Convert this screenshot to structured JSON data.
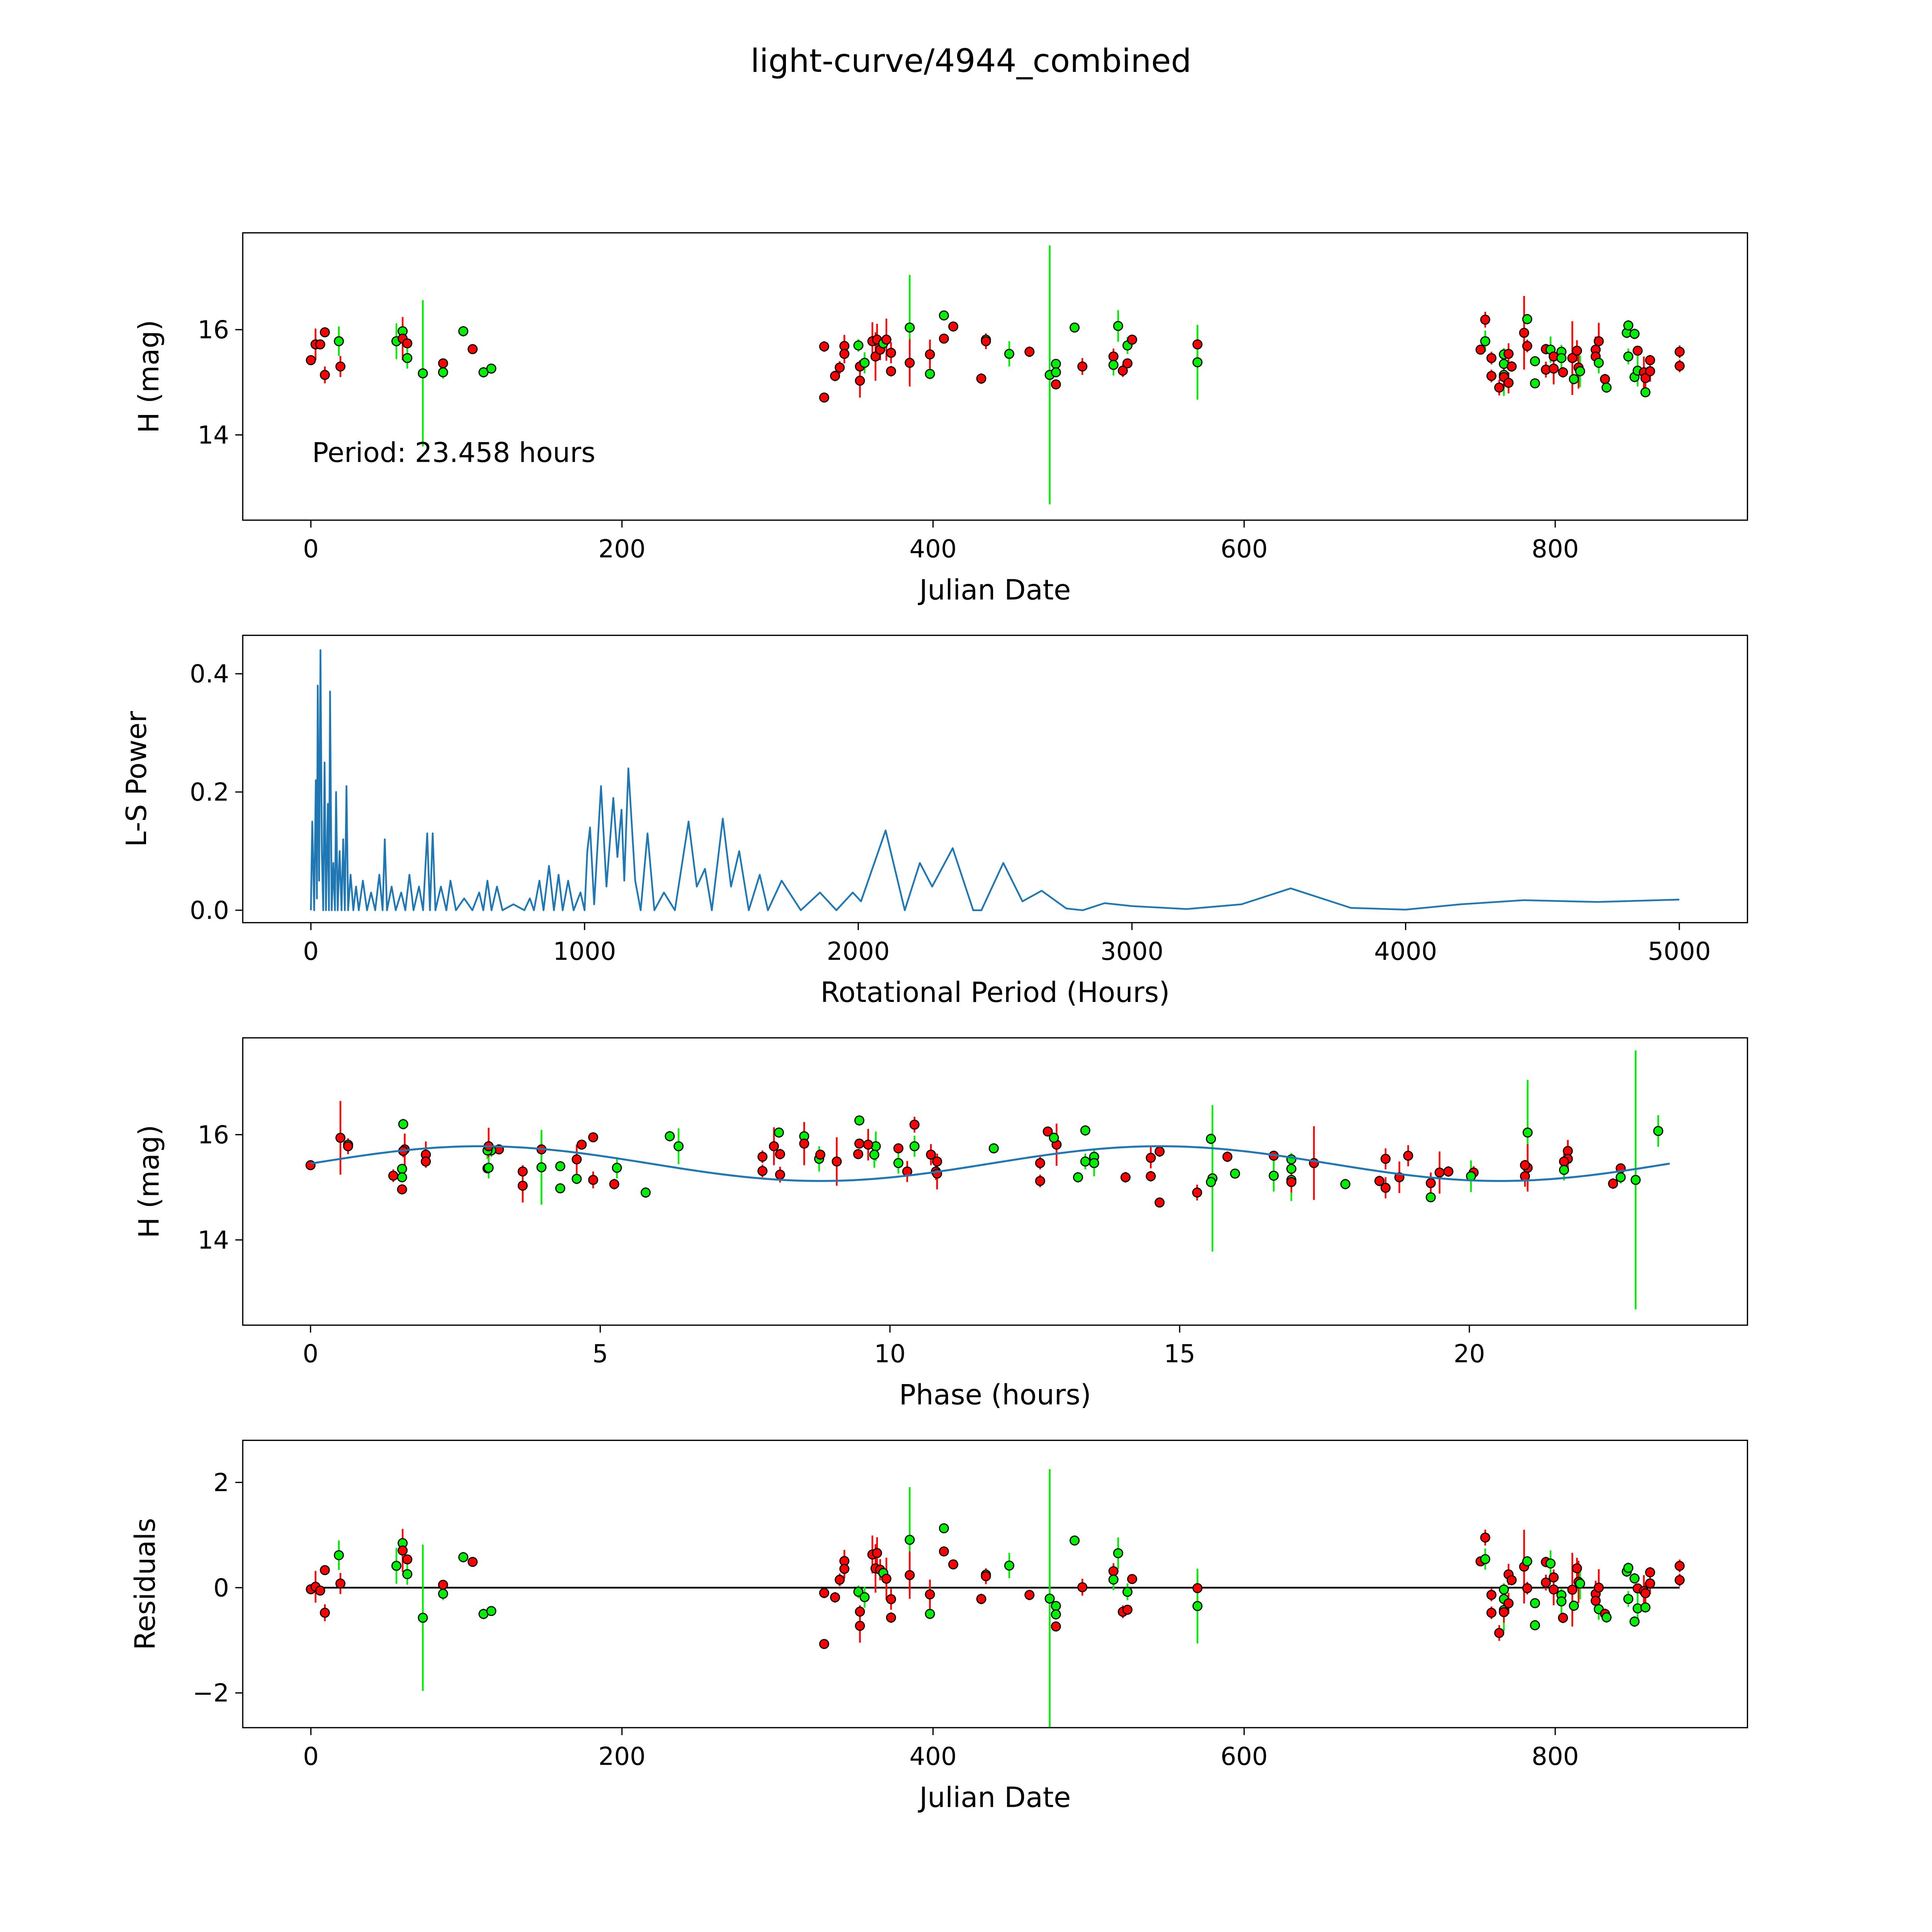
{
  "title": "light-curve/4944_combined",
  "colors": {
    "r": "#ff0000",
    "g": "#00ee00",
    "line": "#1f77b4",
    "edge": "#000000"
  },
  "chart_data": [
    {
      "id": "lightcurve",
      "type": "scatter",
      "xlabel": "Julian Date",
      "ylabel": "H (mag)",
      "xlim": [
        -43.8,
        923.6
      ],
      "ylim": [
        12.38,
        17.84
      ],
      "xticks": [
        0,
        200,
        400,
        600,
        800
      ],
      "xtick_labels": [
        "0",
        "200",
        "400",
        "600",
        "800"
      ],
      "yticks": [
        14,
        16
      ],
      "ytick_labels": [
        "14",
        "16"
      ],
      "annotation": "Period: 23.458 hours",
      "observations_format": [
        "julian_date",
        "H_mag",
        "error",
        "filter"
      ],
      "observations": [
        [
          0,
          15.42,
          0.06,
          "r"
        ],
        [
          3,
          15.72,
          0.3,
          "r"
        ],
        [
          6,
          15.72,
          0.08,
          "r"
        ],
        [
          9,
          15.95,
          0.06,
          "r"
        ],
        [
          9,
          15.14,
          0.16,
          "r"
        ],
        [
          18,
          15.78,
          0.28,
          "g"
        ],
        [
          19,
          15.3,
          0.2,
          "r"
        ],
        [
          55,
          15.78,
          0.34,
          "g"
        ],
        [
          59,
          15.97,
          0.08,
          "g"
        ],
        [
          59,
          15.83,
          0.41,
          "r"
        ],
        [
          62,
          15.74,
          0.06,
          "r"
        ],
        [
          62,
          15.46,
          0.2,
          "g"
        ],
        [
          72,
          15.17,
          1.39,
          "g"
        ],
        [
          85,
          15.36,
          0.06,
          "r"
        ],
        [
          85,
          15.19,
          0.12,
          "g"
        ],
        [
          98,
          15.97,
          0.1,
          "g"
        ],
        [
          104,
          15.63,
          0.06,
          "r"
        ],
        [
          111,
          15.19,
          0.1,
          "g"
        ],
        [
          116,
          15.26,
          0.06,
          "g"
        ],
        [
          330,
          15.68,
          0.1,
          "r"
        ],
        [
          330,
          14.71,
          0.06,
          "r"
        ],
        [
          337,
          15.12,
          0.1,
          "r"
        ],
        [
          340,
          15.28,
          0.12,
          "r"
        ],
        [
          343,
          15.69,
          0.21,
          "r"
        ],
        [
          343,
          15.54,
          0.18,
          "r"
        ],
        [
          352,
          15.7,
          0.12,
          "g"
        ],
        [
          353,
          15.3,
          0.12,
          "r"
        ],
        [
          353,
          15.03,
          0.32,
          "r"
        ],
        [
          356,
          15.37,
          0.2,
          "g"
        ],
        [
          361,
          15.78,
          0.36,
          "r"
        ],
        [
          363,
          15.49,
          0.46,
          "r"
        ],
        [
          364,
          15.81,
          0.3,
          "r"
        ],
        [
          366,
          15.62,
          0.2,
          "r"
        ],
        [
          368,
          15.74,
          0.08,
          "g"
        ],
        [
          370,
          15.81,
          0.4,
          "r"
        ],
        [
          373,
          15.56,
          0.2,
          "r"
        ],
        [
          373,
          15.21,
          0.1,
          "r"
        ],
        [
          385,
          16.04,
          1.0,
          "g"
        ],
        [
          385,
          15.37,
          0.45,
          "r"
        ],
        [
          398,
          15.53,
          0.28,
          "r"
        ],
        [
          398,
          15.16,
          0.1,
          "g"
        ],
        [
          407,
          16.27,
          0.08,
          "g"
        ],
        [
          407,
          15.83,
          0.08,
          "r"
        ],
        [
          413,
          16.06,
          0.08,
          "r"
        ],
        [
          431,
          15.07,
          0.1,
          "r"
        ],
        [
          434,
          15.81,
          0.1,
          "g"
        ],
        [
          434,
          15.78,
          0.15,
          "r"
        ],
        [
          449,
          15.54,
          0.24,
          "g"
        ],
        [
          462,
          15.58,
          0.1,
          "r"
        ],
        [
          475,
          15.14,
          2.46,
          "g"
        ],
        [
          479,
          15.35,
          0.08,
          "g"
        ],
        [
          479,
          15.19,
          0.08,
          "g"
        ],
        [
          479,
          14.96,
          0.08,
          "r"
        ],
        [
          491,
          16.04,
          0.08,
          "g"
        ],
        [
          496,
          15.3,
          0.16,
          "r"
        ],
        [
          516,
          15.49,
          0.15,
          "r"
        ],
        [
          516,
          15.33,
          0.2,
          "g"
        ],
        [
          519,
          16.07,
          0.3,
          "g"
        ],
        [
          522,
          15.22,
          0.12,
          "r"
        ],
        [
          525,
          15.7,
          0.16,
          "g"
        ],
        [
          525,
          15.36,
          0.06,
          "r"
        ],
        [
          528,
          15.81,
          0.06,
          "r"
        ],
        [
          570,
          15.72,
          0.27,
          "r"
        ],
        [
          570,
          15.38,
          0.71,
          "g"
        ],
        [
          752,
          15.62,
          0.06,
          "r"
        ],
        [
          755,
          16.19,
          0.15,
          "r"
        ],
        [
          755,
          15.78,
          0.2,
          "g"
        ],
        [
          759,
          15.46,
          0.12,
          "r"
        ],
        [
          759,
          15.12,
          0.12,
          "r"
        ],
        [
          764,
          14.9,
          0.15,
          "r"
        ],
        [
          767,
          15.53,
          0.1,
          "g"
        ],
        [
          767,
          15.35,
          0.3,
          "g"
        ],
        [
          767,
          15.14,
          0.4,
          "g"
        ],
        [
          767,
          15.1,
          0.2,
          "r"
        ],
        [
          770,
          15.54,
          0.2,
          "r"
        ],
        [
          770,
          14.99,
          0.2,
          "r"
        ],
        [
          772,
          15.3,
          0.1,
          "r"
        ],
        [
          780,
          15.94,
          0.7,
          "r"
        ],
        [
          782,
          16.2,
          0.1,
          "g"
        ],
        [
          782,
          15.69,
          0.12,
          "r"
        ],
        [
          787,
          15.4,
          0.08,
          "g"
        ],
        [
          787,
          14.98,
          0.08,
          "g"
        ],
        [
          794,
          15.63,
          0.1,
          "r"
        ],
        [
          794,
          15.24,
          0.15,
          "r"
        ],
        [
          797,
          15.62,
          0.25,
          "g"
        ],
        [
          799,
          15.49,
          0.15,
          "r"
        ],
        [
          799,
          15.26,
          0.3,
          "r"
        ],
        [
          804,
          15.58,
          0.1,
          "g"
        ],
        [
          804,
          15.46,
          0.25,
          "g"
        ],
        [
          805,
          15.19,
          0.1,
          "r"
        ],
        [
          811,
          15.46,
          0.7,
          "r"
        ],
        [
          812,
          15.06,
          0.1,
          "g"
        ],
        [
          814,
          15.6,
          0.2,
          "r"
        ],
        [
          815,
          15.28,
          0.4,
          "r"
        ],
        [
          816,
          15.21,
          0.3,
          "g"
        ],
        [
          826,
          15.62,
          0.25,
          "r"
        ],
        [
          826,
          15.49,
          0.1,
          "r"
        ],
        [
          828,
          15.78,
          0.35,
          "r"
        ],
        [
          828,
          15.37,
          0.2,
          "g"
        ],
        [
          832,
          15.06,
          0.1,
          "r"
        ],
        [
          833,
          14.9,
          0.1,
          "g"
        ],
        [
          846,
          15.94,
          0.1,
          "g"
        ],
        [
          847,
          16.08,
          0.1,
          "g"
        ],
        [
          847,
          15.49,
          0.15,
          "g"
        ],
        [
          851,
          15.92,
          0.1,
          "g"
        ],
        [
          851,
          15.1,
          0.1,
          "g"
        ],
        [
          853,
          15.6,
          0.06,
          "r"
        ],
        [
          853,
          15.22,
          0.3,
          "g"
        ],
        [
          857,
          15.19,
          0.3,
          "r"
        ],
        [
          858,
          15.08,
          0.2,
          "r"
        ],
        [
          858,
          14.81,
          0.06,
          "g"
        ],
        [
          861,
          15.21,
          0.2,
          "r"
        ],
        [
          861,
          15.42,
          0.1,
          "r"
        ],
        [
          880,
          15.58,
          0.12,
          "r"
        ],
        [
          880,
          15.31,
          0.12,
          "r"
        ]
      ]
    },
    {
      "id": "periodogram",
      "type": "line",
      "xlabel": "Rotational Period (Hours)",
      "ylabel": "L-S Power",
      "xlim": [
        -249,
        5249
      ],
      "ylim": [
        -0.021,
        0.465
      ],
      "xticks": [
        0,
        1000,
        2000,
        3000,
        4000,
        5000
      ],
      "xtick_labels": [
        "0",
        "1000",
        "2000",
        "3000",
        "4000",
        "5000"
      ],
      "yticks": [
        0,
        0.2,
        0.4
      ],
      "ytick_labels": [
        "0.0",
        "0.2",
        "0.4"
      ],
      "points": [
        [
          0,
          0
        ],
        [
          5,
          0.15
        ],
        [
          12,
          0.0
        ],
        [
          18,
          0.22
        ],
        [
          22,
          0.02
        ],
        [
          25,
          0.38
        ],
        [
          30,
          0.05
        ],
        [
          35,
          0.44
        ],
        [
          40,
          0.1
        ],
        [
          45,
          0.0
        ],
        [
          50,
          0.25
        ],
        [
          55,
          0.0
        ],
        [
          62,
          0.18
        ],
        [
          66,
          0.0
        ],
        [
          70,
          0.37
        ],
        [
          76,
          0.0
        ],
        [
          82,
          0.08
        ],
        [
          88,
          0.0
        ],
        [
          92,
          0.2
        ],
        [
          98,
          0.0
        ],
        [
          105,
          0.1
        ],
        [
          112,
          0.0
        ],
        [
          118,
          0.12
        ],
        [
          124,
          0.0
        ],
        [
          130,
          0.21
        ],
        [
          136,
          0.0
        ],
        [
          145,
          0.06
        ],
        [
          155,
          0.0
        ],
        [
          165,
          0.04
        ],
        [
          175,
          0.0
        ],
        [
          190,
          0.05
        ],
        [
          205,
          0.0
        ],
        [
          220,
          0.03
        ],
        [
          235,
          0.0
        ],
        [
          250,
          0.06
        ],
        [
          262,
          0.0
        ],
        [
          270,
          0.12
        ],
        [
          278,
          0.0
        ],
        [
          295,
          0.04
        ],
        [
          310,
          0.0
        ],
        [
          330,
          0.03
        ],
        [
          345,
          0.0
        ],
        [
          360,
          0.06
        ],
        [
          375,
          0.0
        ],
        [
          395,
          0.04
        ],
        [
          410,
          0.0
        ],
        [
          425,
          0.13
        ],
        [
          435,
          0.0
        ],
        [
          445,
          0.13
        ],
        [
          455,
          0.0
        ],
        [
          475,
          0.04
        ],
        [
          495,
          0.0
        ],
        [
          510,
          0.05
        ],
        [
          530,
          0.0
        ],
        [
          560,
          0.02
        ],
        [
          590,
          0.0
        ],
        [
          615,
          0.03
        ],
        [
          630,
          0.0
        ],
        [
          645,
          0.05
        ],
        [
          660,
          0.0
        ],
        [
          680,
          0.04
        ],
        [
          700,
          0.0
        ],
        [
          740,
          0.01
        ],
        [
          780,
          0.0
        ],
        [
          800,
          0.02
        ],
        [
          815,
          0.0
        ],
        [
          835,
          0.05
        ],
        [
          850,
          0.0
        ],
        [
          870,
          0.075
        ],
        [
          888,
          0.0
        ],
        [
          905,
          0.06
        ],
        [
          920,
          0.0
        ],
        [
          940,
          0.05
        ],
        [
          960,
          0.0
        ],
        [
          985,
          0.03
        ],
        [
          1000,
          0.0
        ],
        [
          1010,
          0.1
        ],
        [
          1020,
          0.14
        ],
        [
          1035,
          0.01
        ],
        [
          1060,
          0.21
        ],
        [
          1080,
          0.04
        ],
        [
          1105,
          0.19
        ],
        [
          1120,
          0.09
        ],
        [
          1135,
          0.17
        ],
        [
          1145,
          0.05
        ],
        [
          1160,
          0.24
        ],
        [
          1185,
          0.05
        ],
        [
          1205,
          0.0
        ],
        [
          1230,
          0.13
        ],
        [
          1255,
          0.0
        ],
        [
          1290,
          0.03
        ],
        [
          1330,
          0.0
        ],
        [
          1380,
          0.15
        ],
        [
          1410,
          0.04
        ],
        [
          1440,
          0.07
        ],
        [
          1465,
          0.0
        ],
        [
          1505,
          0.155
        ],
        [
          1535,
          0.04
        ],
        [
          1565,
          0.1
        ],
        [
          1600,
          0.0
        ],
        [
          1640,
          0.06
        ],
        [
          1670,
          0.0
        ],
        [
          1720,
          0.05
        ],
        [
          1790,
          0.0
        ],
        [
          1860,
          0.03
        ],
        [
          1920,
          0.0
        ],
        [
          1980,
          0.03
        ],
        [
          2010,
          0.015
        ],
        [
          2100,
          0.135
        ],
        [
          2170,
          0.0
        ],
        [
          2225,
          0.08
        ],
        [
          2270,
          0.04
        ],
        [
          2345,
          0.105
        ],
        [
          2420,
          0.0
        ],
        [
          2450,
          0.0
        ],
        [
          2530,
          0.08
        ],
        [
          2600,
          0.015
        ],
        [
          2670,
          0.033
        ],
        [
          2760,
          0.003
        ],
        [
          2820,
          0.0
        ],
        [
          2900,
          0.012
        ],
        [
          3000,
          0.007
        ],
        [
          3200,
          0.002
        ],
        [
          3400,
          0.01
        ],
        [
          3580,
          0.037
        ],
        [
          3800,
          0.004
        ],
        [
          4000,
          0.001
        ],
        [
          4200,
          0.01
        ],
        [
          4430,
          0.017
        ],
        [
          4700,
          0.014
        ],
        [
          5000,
          0.018
        ]
      ]
    },
    {
      "id": "phase",
      "type": "scatter",
      "xlabel": "Phase (hours)",
      "ylabel": "H (mag)",
      "xlim": [
        -1.17,
        24.8
      ],
      "ylim": [
        12.38,
        17.84
      ],
      "xticks": [
        0,
        5,
        10,
        15,
        20
      ],
      "xtick_labels": [
        "0",
        "5",
        "10",
        "15",
        "20"
      ],
      "yticks": [
        14,
        16
      ],
      "ytick_labels": [
        "14",
        "16"
      ],
      "period_hours": 23.458,
      "model": {
        "mean": 15.45,
        "amplitude": 0.33,
        "harmonic_period_hours": 11.729
      }
    },
    {
      "id": "residuals",
      "type": "scatter",
      "xlabel": "Julian Date",
      "ylabel": "Residuals",
      "xlim": [
        -43.8,
        923.6
      ],
      "ylim": [
        -2.66,
        2.8
      ],
      "xticks": [
        0,
        200,
        400,
        600,
        800
      ],
      "xtick_labels": [
        "0",
        "200",
        "400",
        "600",
        "800"
      ],
      "yticks": [
        -2,
        0,
        2
      ],
      "ytick_labels": [
        "−2",
        "0",
        "2"
      ]
    }
  ]
}
